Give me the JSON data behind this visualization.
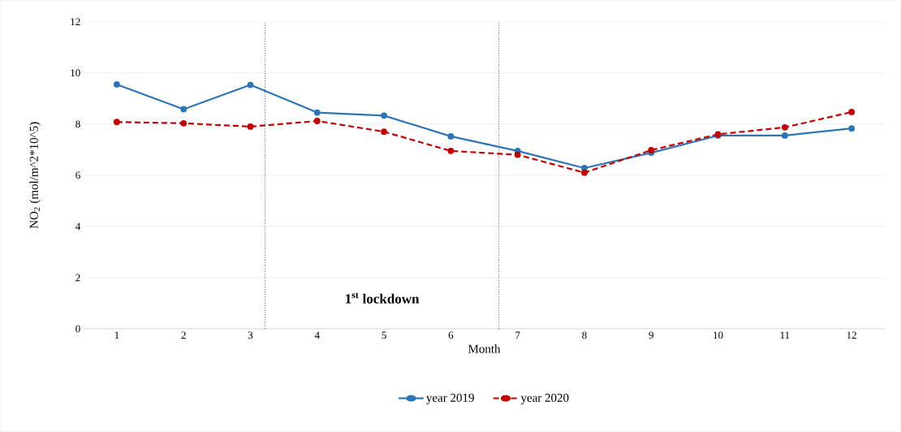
{
  "chart_data": {
    "type": "line",
    "xlabel": "Month",
    "ylabel": "NO$_{2}$ (mol/m^2*10^5)",
    "x": [
      1,
      2,
      3,
      4,
      5,
      6,
      7,
      8,
      9,
      10,
      11,
      12
    ],
    "xlim": [
      0.5,
      12.5
    ],
    "xticks": [
      1,
      2,
      3,
      4,
      5,
      6,
      7,
      8,
      9,
      10,
      11,
      12
    ],
    "ylim": [
      0,
      12
    ],
    "yticks": [
      0,
      2,
      4,
      6,
      8,
      10,
      12
    ],
    "grid": "y",
    "legend": "bottom",
    "marker": "circle",
    "series": [
      {
        "name": "year 2019",
        "color": "#2e75b6",
        "line_style": "solid",
        "values": [
          9.55,
          8.58,
          9.53,
          8.45,
          8.33,
          7.52,
          6.95,
          6.28,
          6.88,
          7.55,
          7.55,
          7.83
        ]
      },
      {
        "name": "year 2020",
        "color": "#c00000",
        "line_style": "dashed",
        "values": [
          8.08,
          8.03,
          7.9,
          8.12,
          7.7,
          6.95,
          6.8,
          6.1,
          6.98,
          7.6,
          7.87,
          8.47
        ]
      }
    ],
    "ref_lines": [
      {
        "axis": "x",
        "value": 3.22,
        "color": "#000000",
        "line_style": "dotted"
      },
      {
        "axis": "x",
        "value": 6.72,
        "color": "#000000",
        "line_style": "dotted"
      }
    ],
    "annotations": [
      "**1$^{st}$ lockdown**"
    ]
  }
}
